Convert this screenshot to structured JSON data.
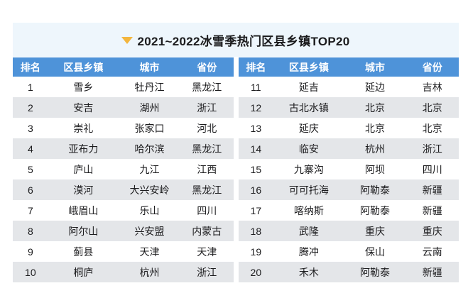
{
  "title": {
    "text": "2021~2022冰雪季热门区县乡镇TOP20",
    "icon": "triangle-down-icon"
  },
  "colors": {
    "title_band_bg": "#eef6fc",
    "title_icon": "#f3b63e",
    "header_bg": "#4e93d9",
    "header_text": "#ffffff",
    "row_bg": "#ffffff",
    "row_alt_bg": "#e4e6e9",
    "body_text": "#1b1b1d"
  },
  "chart_data": {
    "type": "table",
    "title": "2021~2022冰雪季热门区县乡镇TOP20",
    "layout": "two side-by-side tables, ranks 1-10 left and 11-20 right, alternating row shading",
    "columns": [
      "排名",
      "区县乡镇",
      "城市",
      "省份"
    ],
    "rows": [
      [
        1,
        "雪乡",
        "牡丹江",
        "黑龙江"
      ],
      [
        2,
        "安吉",
        "湖州",
        "浙江"
      ],
      [
        3,
        "崇礼",
        "张家口",
        "河北"
      ],
      [
        4,
        "亚布力",
        "哈尔滨",
        "黑龙江"
      ],
      [
        5,
        "庐山",
        "九江",
        "江西"
      ],
      [
        6,
        "漠河",
        "大兴安岭",
        "黑龙江"
      ],
      [
        7,
        "峨眉山",
        "乐山",
        "四川"
      ],
      [
        8,
        "阿尔山",
        "兴安盟",
        "内蒙古"
      ],
      [
        9,
        "蓟县",
        "天津",
        "天津"
      ],
      [
        10,
        "桐庐",
        "杭州",
        "浙江"
      ],
      [
        11,
        "延吉",
        "延边",
        "吉林"
      ],
      [
        12,
        "古北水镇",
        "北京",
        "北京"
      ],
      [
        13,
        "延庆",
        "北京",
        "北京"
      ],
      [
        14,
        "临安",
        "杭州",
        "浙江"
      ],
      [
        15,
        "九寨沟",
        "阿坝",
        "四川"
      ],
      [
        16,
        "可可托海",
        "阿勒泰",
        "新疆"
      ],
      [
        17,
        "喀纳斯",
        "阿勒泰",
        "新疆"
      ],
      [
        18,
        "武隆",
        "重庆",
        "重庆"
      ],
      [
        19,
        "腾冲",
        "保山",
        "云南"
      ],
      [
        20,
        "禾木",
        "阿勒泰",
        "新疆"
      ]
    ]
  }
}
